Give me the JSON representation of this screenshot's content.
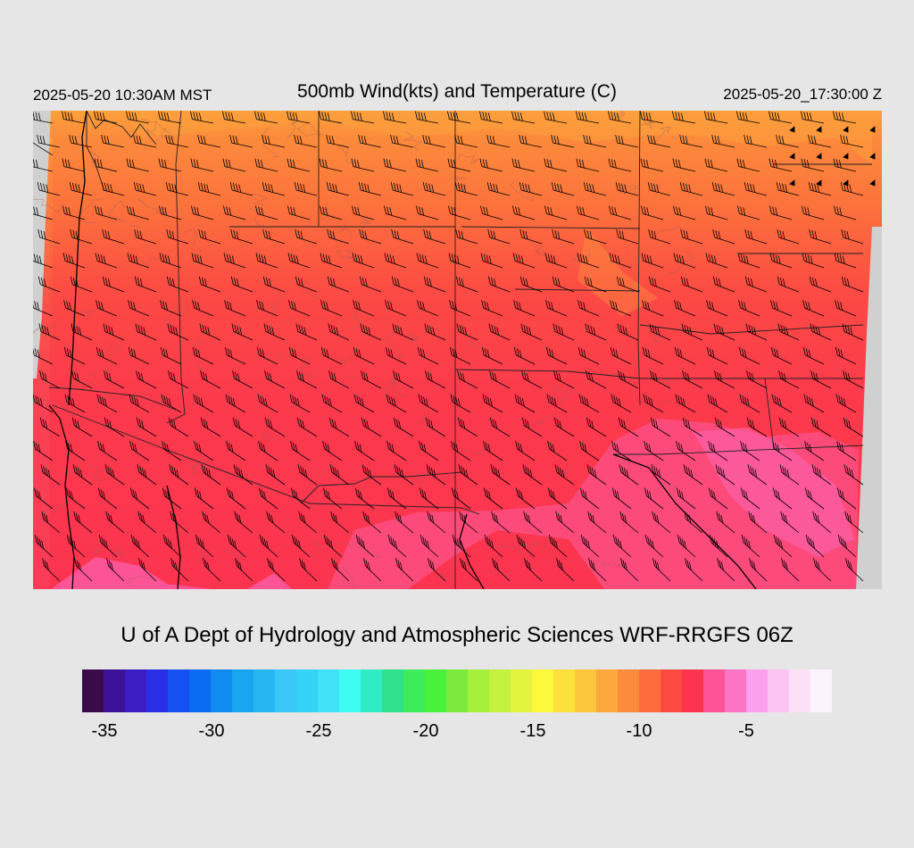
{
  "header": {
    "local_time": "2025-05-20 10:30AM MST",
    "title": "500mb Wind(kts) and Temperature (C)",
    "valid_time": "2025-05-20_17:30:00 Z"
  },
  "credit": "U of A Dept of Hydrology and Atmospheric Sciences WRF-RRGFS 06Z",
  "colorbar": {
    "colors": [
      "#3a0a4a",
      "#3d1298",
      "#3a1ec4",
      "#2a2ee6",
      "#1450f2",
      "#0a6cf2",
      "#108cf0",
      "#18a6f0",
      "#26b6f2",
      "#3ac6f8",
      "#34d2f6",
      "#40e2f8",
      "#3cfcf4",
      "#30ecc4",
      "#30e08c",
      "#3cec5a",
      "#48f23c",
      "#7cea3c",
      "#a4f03c",
      "#c4f23e",
      "#e2f43e",
      "#fcf83c",
      "#fce03c",
      "#fcc63c",
      "#fca83c",
      "#fc8c3c",
      "#fc6c3c",
      "#fc4a40",
      "#fc3450",
      "#fc5494",
      "#fc74c4",
      "#fca0ec",
      "#fcc4f0",
      "#fce0f8",
      "#fcf4fc"
    ],
    "ticks": [
      "-35",
      "-30",
      "-25",
      "-20",
      "-15",
      "-10",
      "-5"
    ]
  },
  "map_colors": {
    "orange": "#fc7a3c",
    "light_orange": "#fca03c",
    "red_orange": "#fc5a40",
    "red": "#fc4048",
    "crimson": "#fc3450",
    "pink": "#fc5494",
    "no_data": "#d0d0d0"
  }
}
